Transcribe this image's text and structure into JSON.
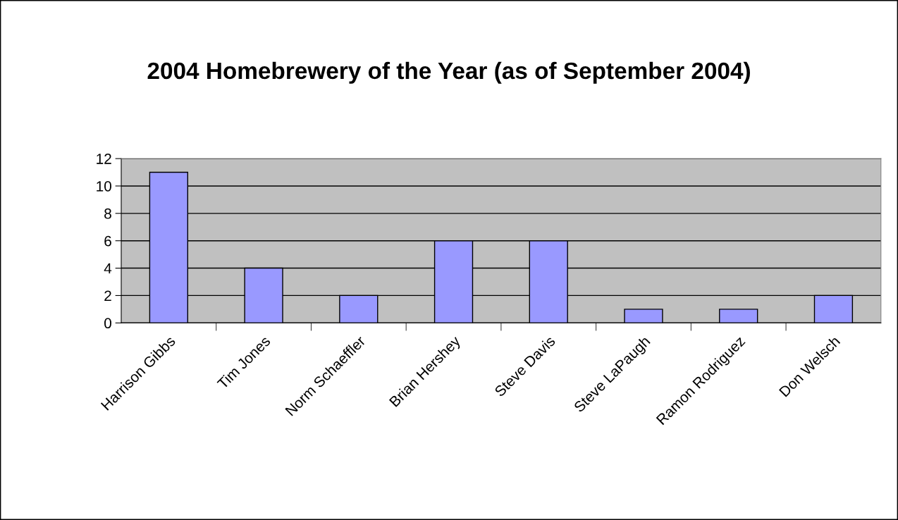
{
  "chart_data": {
    "type": "bar",
    "title": "2004 Homebrewery of the Year (as of September 2004)",
    "categories": [
      "Harrison Gibbs",
      "Tim Jones",
      "Norm Schaeffler",
      "Brian Hershey",
      "Steve Davis",
      "Steve LaPaugh",
      "Ramon Rodriguez",
      "Don Welsch"
    ],
    "values": [
      11,
      4,
      2,
      6,
      6,
      1,
      1,
      2
    ],
    "color": "#9999ff",
    "ylim": [
      0,
      12
    ],
    "yticks": [
      0,
      2,
      4,
      6,
      8,
      10,
      12
    ],
    "grid": "y",
    "legend": false
  }
}
